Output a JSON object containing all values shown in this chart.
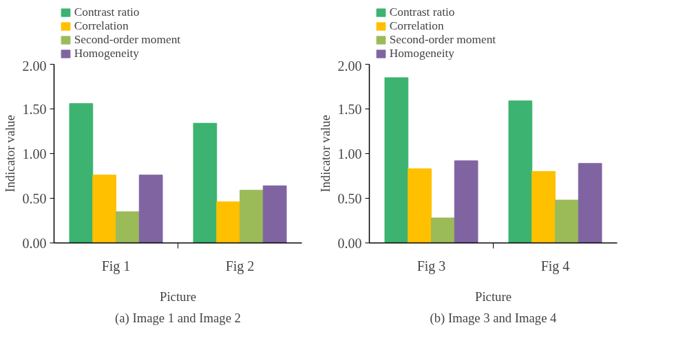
{
  "chart_data": [
    {
      "type": "bar",
      "title": "(a) Image 1 and Image 2",
      "xlabel": "Picture",
      "ylabel": "Indicator value",
      "categories": [
        "Fig 1",
        "Fig 2"
      ],
      "series": [
        {
          "name": "Contrast ratio",
          "color": "#3cb371",
          "values": [
            1.56,
            1.34
          ]
        },
        {
          "name": "Correlation",
          "color": "#ffc000",
          "values": [
            0.76,
            0.46
          ]
        },
        {
          "name": "Second-order moment",
          "color": "#9bbb59",
          "values": [
            0.35,
            0.59
          ]
        },
        {
          "name": "Homogeneity",
          "color": "#8064a2",
          "values": [
            0.76,
            0.64
          ]
        }
      ],
      "ylim": [
        0,
        2
      ],
      "yticks": [
        {
          "value": 0,
          "label": "0.00"
        },
        {
          "value": 0.5,
          "label": "0.50"
        },
        {
          "value": 1,
          "label": "1.00"
        },
        {
          "value": 1.5,
          "label": "1.50"
        },
        {
          "value": 2,
          "label": "2.00"
        }
      ],
      "grid": false,
      "legend": "top"
    },
    {
      "type": "bar",
      "title": "(b) Image 3 and Image 4",
      "xlabel": "Picture",
      "ylabel": "Indicator value",
      "categories": [
        "Fig 3",
        "Fig 4"
      ],
      "series": [
        {
          "name": "Contrast ratio",
          "color": "#3cb371",
          "values": [
            1.85,
            1.59
          ]
        },
        {
          "name": "Correlation",
          "color": "#ffc000",
          "values": [
            0.83,
            0.8
          ]
        },
        {
          "name": "Second-order moment",
          "color": "#9bbb59",
          "values": [
            0.28,
            0.48
          ]
        },
        {
          "name": "Homogeneity",
          "color": "#8064a2",
          "values": [
            0.92,
            0.89
          ]
        }
      ],
      "ylim": [
        0,
        2
      ],
      "yticks": [
        {
          "value": 0,
          "label": "0.00"
        },
        {
          "value": 0.5,
          "label": "0.50"
        },
        {
          "value": 1,
          "label": "1.00"
        },
        {
          "value": 1.5,
          "label": "1.50"
        },
        {
          "value": 2,
          "label": "2.00"
        }
      ],
      "grid": false,
      "legend": "top"
    }
  ]
}
